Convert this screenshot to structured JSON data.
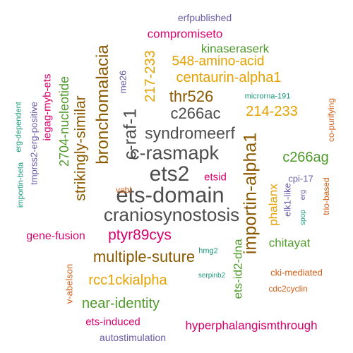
{
  "colors": {
    "gray": "#4d4d4d",
    "brown": "#8b5a00",
    "gold": "#e6a100",
    "green": "#4f9a2a",
    "magenta": "#d6006e",
    "purple": "#6b5ba8",
    "teal": "#1a9a78",
    "orange": "#d2601a",
    "olive": "#7a8a10"
  },
  "words": [
    {
      "text": "ets-domain",
      "color": "gray"
    },
    {
      "text": "craniosynostosis",
      "color": "gray"
    },
    {
      "text": "c-rasmapk",
      "color": "gray"
    },
    {
      "text": "syndromeerf",
      "color": "gray"
    },
    {
      "text": "ets2",
      "color": "gray"
    },
    {
      "text": "c266ac",
      "color": "gray"
    },
    {
      "text": "c-raf-1",
      "color": "gray"
    },
    {
      "text": "thr526",
      "color": "brown"
    },
    {
      "text": "bronchomalacia",
      "color": "brown"
    },
    {
      "text": "multiple-suture",
      "color": "brown"
    },
    {
      "text": "strikingly-similar",
      "color": "brown"
    },
    {
      "text": "ptyr89cys",
      "color": "magenta"
    },
    {
      "text": "importin-alpha1",
      "color": "brown"
    },
    {
      "text": "centaurin-alpha1",
      "color": "gold"
    },
    {
      "text": "548-amino-acid",
      "color": "gold"
    },
    {
      "text": "214-233",
      "color": "gold"
    },
    {
      "text": "217-233",
      "color": "gold"
    },
    {
      "text": "rcc1ckialpha",
      "color": "gold"
    },
    {
      "text": "phalanx",
      "color": "gold"
    },
    {
      "text": "near-identity",
      "color": "green"
    },
    {
      "text": "c266ag",
      "color": "green"
    },
    {
      "text": "2704-nucleotide",
      "color": "green"
    },
    {
      "text": "kinaseraserk",
      "color": "green"
    },
    {
      "text": "chitayat",
      "color": "green"
    },
    {
      "text": "ets-id2-dna",
      "color": "green"
    },
    {
      "text": "compromiseto",
      "color": "magenta"
    },
    {
      "text": "hyperphalangismthrough",
      "color": "magenta"
    },
    {
      "text": "gene-fusion",
      "color": "magenta"
    },
    {
      "text": "ets-induced",
      "color": "magenta"
    },
    {
      "text": "iegag-myb-ets",
      "color": "magenta"
    },
    {
      "text": "etsid",
      "color": "magenta"
    },
    {
      "text": "erfpublished",
      "color": "purple"
    },
    {
      "text": "autostimulation",
      "color": "purple"
    },
    {
      "text": "me26",
      "color": "purple"
    },
    {
      "text": "cpi-17",
      "color": "purple"
    },
    {
      "text": "elk1-like",
      "color": "purple"
    },
    {
      "text": "tmprss2-erg-positive",
      "color": "purple"
    },
    {
      "text": "microrna-191",
      "color": "teal"
    },
    {
      "text": "erg-dependent",
      "color": "teal"
    },
    {
      "text": "importin-beta",
      "color": "teal"
    },
    {
      "text": "hmg2",
      "color": "teal"
    },
    {
      "text": "serpinb2",
      "color": "teal"
    },
    {
      "text": "spop",
      "color": "teal"
    },
    {
      "text": "erg",
      "color": "purple"
    },
    {
      "text": "vabl",
      "color": "orange"
    },
    {
      "text": "v-abelson",
      "color": "orange"
    },
    {
      "text": "cki-mediated",
      "color": "orange"
    },
    {
      "text": "cdc2cyclin",
      "color": "orange"
    },
    {
      "text": "co-purifying",
      "color": "orange"
    },
    {
      "text": "trio-based",
      "color": "orange"
    }
  ]
}
